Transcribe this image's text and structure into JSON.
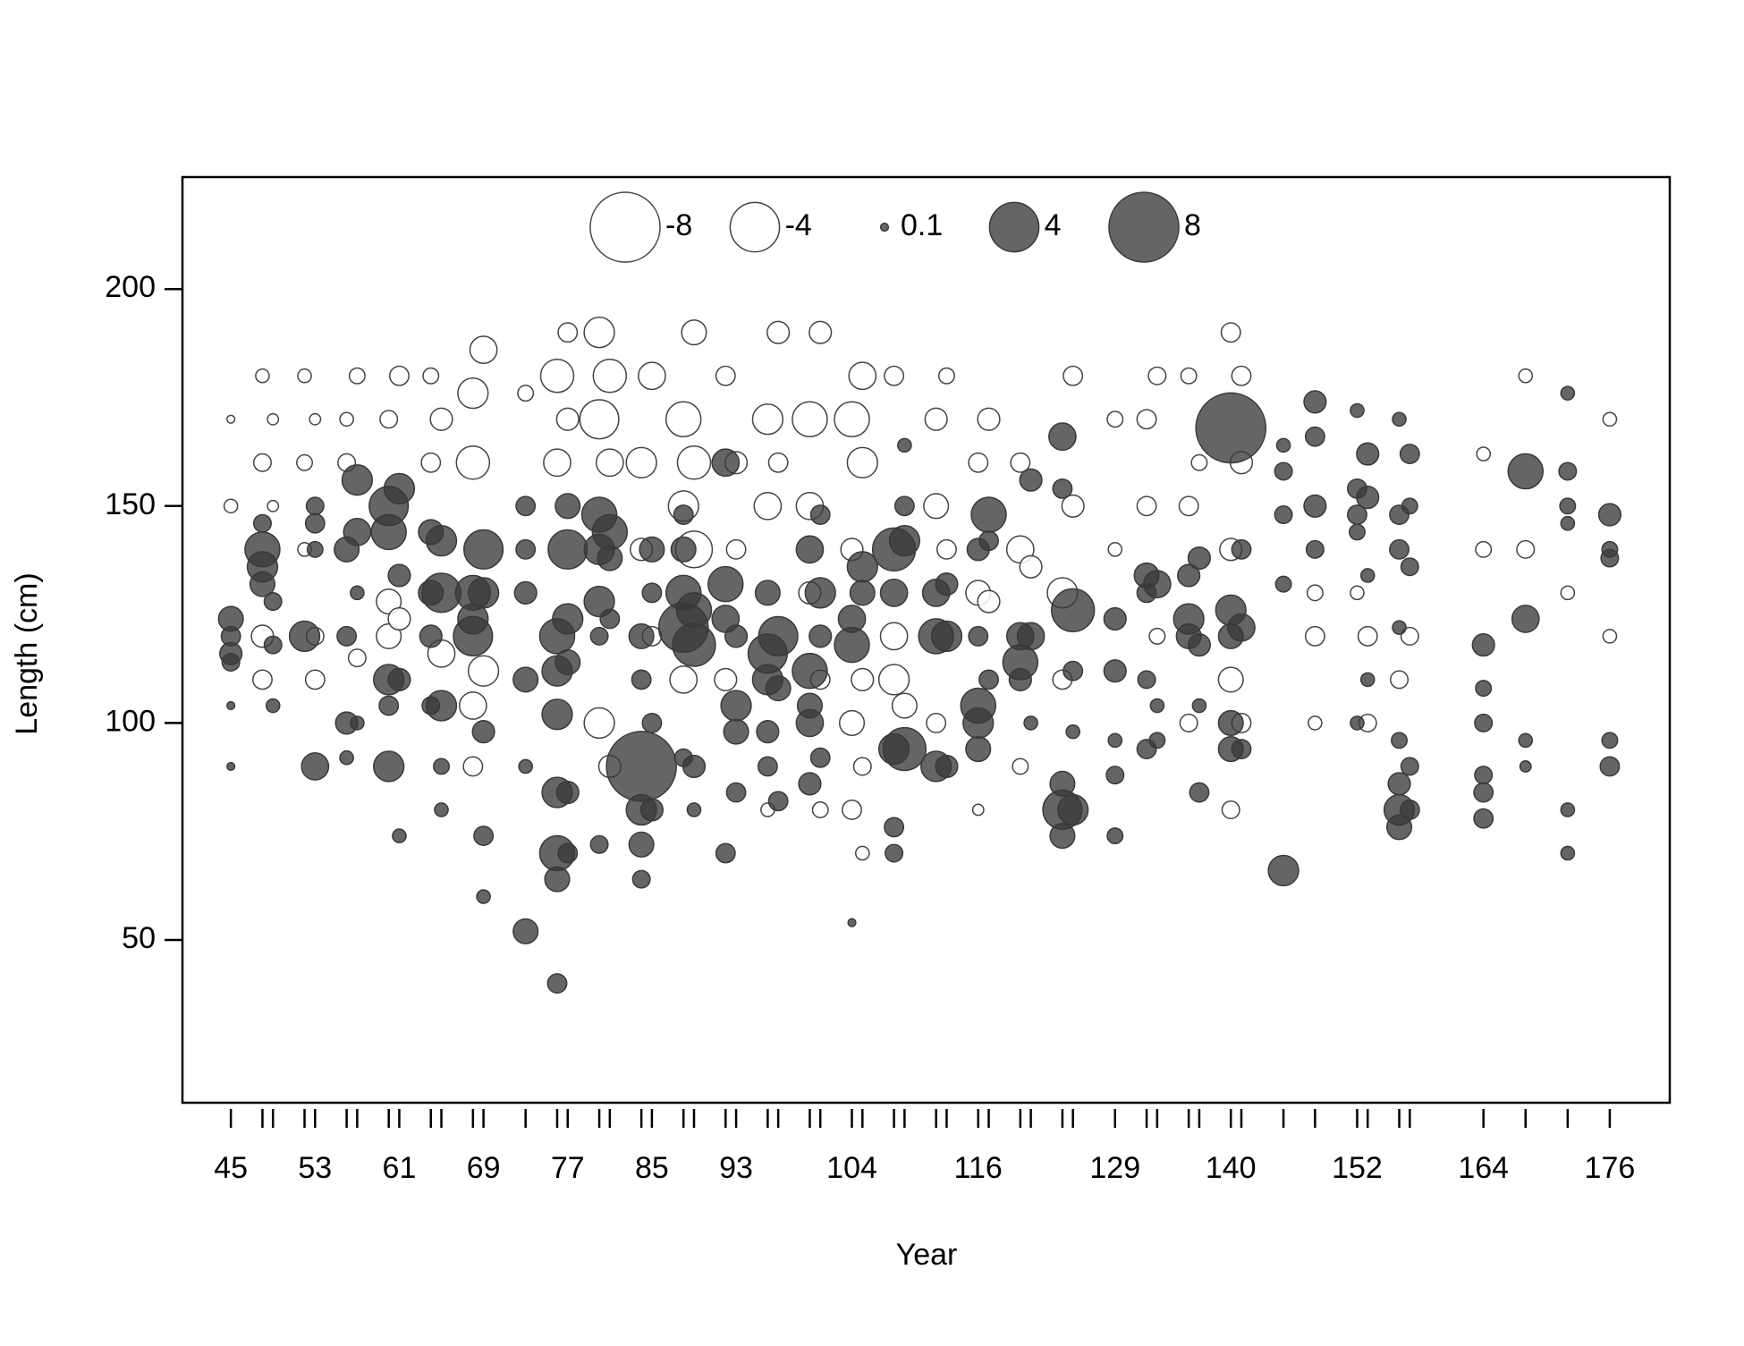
{
  "chart_data": {
    "type": "bubble",
    "x_label": "Year",
    "y_label": "Length (cm)",
    "xlim": [
      40.4,
      181.7
    ],
    "ylim": [
      12.5,
      225.8
    ],
    "xticks": [
      45,
      53,
      61,
      69,
      77,
      85,
      93,
      104,
      116,
      129,
      140,
      152,
      164,
      176
    ],
    "yticks": [
      50,
      100,
      150,
      200
    ],
    "positive_color": "#3a3a3a",
    "negative_color": "#ffffff",
    "negative_stroke": "#444444",
    "legend": {
      "position": "top",
      "values": [
        -8,
        -4,
        0.1,
        4,
        8
      ]
    },
    "columns": [
      {
        "x": 45,
        "y": [
          124,
          120,
          116,
          114,
          104,
          150,
          170,
          90
        ],
        "values": [
          1,
          0.6,
          0.8,
          0.5,
          0.1,
          -0.3,
          -0.1,
          0.1
        ]
      },
      {
        "x": 48,
        "y": [
          140,
          136,
          132,
          146,
          160,
          120,
          110,
          180
        ],
        "values": [
          2,
          1.5,
          1,
          0.5,
          -0.5,
          -0.8,
          -0.6,
          -0.3
        ]
      },
      {
        "x": 49,
        "y": [
          128,
          118,
          104,
          150,
          170
        ],
        "values": [
          0.5,
          0.5,
          0.3,
          -0.2,
          -0.2
        ]
      },
      {
        "x": 52,
        "y": [
          120,
          180,
          160,
          140
        ],
        "values": [
          1.5,
          -0.3,
          -0.4,
          -0.3
        ]
      },
      {
        "x": 53,
        "y": [
          90,
          146,
          150,
          140,
          110,
          120,
          170
        ],
        "values": [
          1.2,
          0.6,
          0.5,
          0.4,
          -0.6,
          -0.5,
          -0.2
        ]
      },
      {
        "x": 56,
        "y": [
          140,
          120,
          100,
          92,
          170,
          160
        ],
        "values": [
          1,
          0.6,
          0.8,
          0.3,
          -0.3,
          -0.5
        ]
      },
      {
        "x": 57,
        "y": [
          156,
          144,
          130,
          100,
          180,
          115
        ],
        "values": [
          1.5,
          1.2,
          0.3,
          0.3,
          -0.4,
          -0.5
        ]
      },
      {
        "x": 60,
        "y": [
          150,
          144,
          110,
          90,
          104,
          170,
          128,
          120
        ],
        "values": [
          2.5,
          2,
          1.5,
          1.5,
          0.6,
          -0.5,
          -1,
          -1
        ]
      },
      {
        "x": 61,
        "y": [
          154,
          134,
          110,
          74,
          180,
          124
        ],
        "values": [
          1.5,
          0.8,
          0.8,
          0.3,
          -0.6,
          -0.8
        ]
      },
      {
        "x": 64,
        "y": [
          144,
          130,
          120,
          104,
          180,
          160
        ],
        "values": [
          1,
          1,
          0.8,
          0.5,
          -0.4,
          -0.6
        ]
      },
      {
        "x": 65,
        "y": [
          142,
          130,
          104,
          90,
          80,
          170,
          116
        ],
        "values": [
          1.5,
          2.5,
          1.5,
          0.4,
          0.3,
          -0.8,
          -1.2
        ]
      },
      {
        "x": 68,
        "y": [
          130,
          120,
          124,
          176,
          160,
          104,
          90
        ],
        "values": [
          2,
          2.5,
          1.5,
          -1.5,
          -1.8,
          -1.2,
          -0.6
        ]
      },
      {
        "x": 69,
        "y": [
          140,
          130,
          98,
          74,
          60,
          186,
          112
        ],
        "values": [
          2.5,
          1.5,
          0.8,
          0.6,
          0.3,
          -1.2,
          -1.5
        ]
      },
      {
        "x": 73,
        "y": [
          150,
          140,
          130,
          110,
          90,
          52,
          176
        ],
        "values": [
          0.6,
          0.6,
          0.8,
          1,
          0.3,
          1,
          -0.4
        ]
      },
      {
        "x": 76,
        "y": [
          120,
          112,
          102,
          84,
          70,
          64,
          40,
          180,
          160
        ],
        "values": [
          2,
          1.5,
          1.5,
          1.5,
          2,
          1,
          0.6,
          -1.8,
          -1.2
        ]
      },
      {
        "x": 77,
        "y": [
          140,
          124,
          114,
          84,
          70,
          190,
          150,
          170
        ],
        "values": [
          2.5,
          1.5,
          1,
          0.8,
          0.6,
          -0.6,
          1,
          -0.8
        ]
      },
      {
        "x": 80,
        "y": [
          148,
          140,
          128,
          120,
          100,
          170,
          190,
          72
        ],
        "values": [
          2,
          1.5,
          1.5,
          0.5,
          -1.5,
          -2.5,
          -1.5,
          0.5
        ]
      },
      {
        "x": 81,
        "y": [
          144,
          138,
          124,
          90,
          180,
          160
        ],
        "values": [
          2,
          1,
          0.6,
          -0.8,
          -1.8,
          -1.2
        ]
      },
      {
        "x": 84,
        "y": [
          90,
          80,
          72,
          64,
          120,
          110,
          160,
          140
        ],
        "values": [
          8,
          1.5,
          1,
          0.5,
          1,
          0.6,
          -1.5,
          -0.8
        ]
      },
      {
        "x": 85,
        "y": [
          140,
          130,
          100,
          80,
          180,
          120
        ],
        "values": [
          1,
          0.6,
          0.6,
          0.8,
          -1.2,
          -0.6
        ]
      },
      {
        "x": 88,
        "y": [
          122,
          130,
          148,
          140,
          170,
          150,
          110,
          92
        ],
        "values": [
          4,
          2,
          0.6,
          1,
          -2,
          -1.5,
          -1.2,
          0.5
        ]
      },
      {
        "x": 89,
        "y": [
          118,
          126,
          90,
          80,
          160,
          140,
          190
        ],
        "values": [
          3,
          2,
          0.8,
          0.3,
          -1.8,
          -2.2,
          -1
        ]
      },
      {
        "x": 92,
        "y": [
          160,
          132,
          124,
          70,
          110,
          180
        ],
        "values": [
          1.2,
          2,
          1.2,
          0.6,
          -0.8,
          -0.6
        ]
      },
      {
        "x": 93,
        "y": [
          104,
          98,
          84,
          120,
          160,
          140
        ],
        "values": [
          1.5,
          1,
          0.6,
          0.8,
          -0.8,
          -0.6
        ]
      },
      {
        "x": 96,
        "y": [
          116,
          110,
          98,
          90,
          130,
          170,
          150,
          80
        ],
        "values": [
          2.5,
          1.5,
          0.8,
          0.6,
          1,
          -1.5,
          -1.2,
          -0.3
        ]
      },
      {
        "x": 97,
        "y": [
          120,
          108,
          82,
          190,
          160
        ],
        "values": [
          2.5,
          1,
          0.6,
          -0.8,
          -0.6
        ]
      },
      {
        "x": 100,
        "y": [
          112,
          104,
          100,
          86,
          140,
          170,
          150,
          130
        ],
        "values": [
          2,
          1,
          1.2,
          0.8,
          1.2,
          -2,
          -1.2,
          -0.8
        ]
      },
      {
        "x": 101,
        "y": [
          130,
          120,
          92,
          148,
          190,
          110,
          80
        ],
        "values": [
          1.5,
          0.8,
          0.6,
          0.6,
          -0.8,
          -0.6,
          -0.4
        ]
      },
      {
        "x": 104,
        "y": [
          118,
          124,
          140,
          170,
          100,
          80,
          54
        ],
        "values": [
          2,
          1.2,
          -0.8,
          -2,
          -1,
          -0.6,
          0.1
        ]
      },
      {
        "x": 105,
        "y": [
          136,
          130,
          110,
          160,
          180,
          90,
          70
        ],
        "values": [
          1.5,
          1,
          -0.8,
          -1.5,
          -1.2,
          -0.5,
          -0.3
        ]
      },
      {
        "x": 108,
        "y": [
          140,
          130,
          94,
          76,
          70,
          120,
          110,
          180
        ],
        "values": [
          3,
          1.2,
          1.5,
          0.6,
          0.5,
          -1.2,
          -1.5,
          -0.6
        ]
      },
      {
        "x": 109,
        "y": [
          142,
          150,
          94,
          164,
          104
        ],
        "values": [
          1.5,
          0.6,
          3,
          0.3,
          -1
        ]
      },
      {
        "x": 112,
        "y": [
          130,
          120,
          90,
          150,
          170,
          100
        ],
        "values": [
          1.2,
          2,
          1.5,
          -1,
          -0.8,
          -0.6
        ]
      },
      {
        "x": 113,
        "y": [
          120,
          132,
          90,
          140,
          180
        ],
        "values": [
          1.5,
          0.8,
          0.8,
          -0.6,
          -0.4
        ]
      },
      {
        "x": 116,
        "y": [
          104,
          100,
          94,
          120,
          140,
          130,
          160,
          80
        ],
        "values": [
          2,
          1.5,
          1,
          0.6,
          0.8,
          -1,
          -0.6,
          -0.2
        ]
      },
      {
        "x": 117,
        "y": [
          148,
          142,
          110,
          170,
          128
        ],
        "values": [
          2,
          0.6,
          0.6,
          -0.8,
          -0.8
        ]
      },
      {
        "x": 120,
        "y": [
          114,
          120,
          110,
          140,
          160,
          90
        ],
        "values": [
          2,
          1.2,
          0.8,
          -1.2,
          -0.6,
          -0.4
        ]
      },
      {
        "x": 121,
        "y": [
          156,
          120,
          100,
          136
        ],
        "values": [
          0.8,
          1.2,
          0.3,
          -0.8
        ]
      },
      {
        "x": 124,
        "y": [
          166,
          154,
          86,
          80,
          74,
          110,
          130
        ],
        "values": [
          1.2,
          0.6,
          1,
          2.5,
          1,
          -0.6,
          -1.5
        ]
      },
      {
        "x": 125,
        "y": [
          126,
          112,
          80,
          98,
          180,
          150
        ],
        "values": [
          3,
          0.6,
          1.5,
          0.3,
          -0.6,
          -0.8
        ]
      },
      {
        "x": 129,
        "y": [
          124,
          112,
          88,
          74,
          96,
          170,
          140
        ],
        "values": [
          0.8,
          0.8,
          0.5,
          0.4,
          0.3,
          -0.4,
          -0.3
        ]
      },
      {
        "x": 132,
        "y": [
          134,
          130,
          110,
          94,
          170,
          150
        ],
        "values": [
          1,
          0.6,
          0.5,
          0.6,
          -0.6,
          -0.6
        ]
      },
      {
        "x": 133,
        "y": [
          132,
          96,
          104,
          180,
          120
        ],
        "values": [
          1.2,
          0.4,
          0.3,
          -0.5,
          -0.4
        ]
      },
      {
        "x": 136,
        "y": [
          134,
          124,
          120,
          100,
          150,
          180
        ],
        "values": [
          0.8,
          1.5,
          1,
          -0.5,
          -0.6,
          -0.4
        ]
      },
      {
        "x": 137,
        "y": [
          138,
          118,
          84,
          104,
          160
        ],
        "values": [
          0.8,
          0.8,
          0.6,
          0.3,
          -0.4
        ]
      },
      {
        "x": 140,
        "y": [
          168,
          126,
          120,
          100,
          94,
          140,
          110,
          80,
          190
        ],
        "values": [
          8,
          1.5,
          1,
          1,
          1,
          -0.8,
          -1,
          -0.5,
          -0.6
        ]
      },
      {
        "x": 141,
        "y": [
          122,
          140,
          94,
          160,
          180,
          100
        ],
        "values": [
          1.2,
          0.6,
          0.6,
          -0.8,
          -0.6,
          -0.6
        ]
      },
      {
        "x": 145,
        "y": [
          158,
          148,
          132,
          66,
          164
        ],
        "values": [
          0.5,
          0.5,
          0.4,
          1.5,
          0.3
        ]
      },
      {
        "x": 148,
        "y": [
          174,
          166,
          150,
          140,
          120,
          130,
          100
        ],
        "values": [
          0.8,
          0.6,
          0.8,
          0.5,
          -0.6,
          -0.4,
          -0.3
        ]
      },
      {
        "x": 152,
        "y": [
          154,
          148,
          144,
          100,
          172,
          130
        ],
        "values": [
          0.6,
          0.6,
          0.4,
          0.3,
          0.3,
          -0.3
        ]
      },
      {
        "x": 153,
        "y": [
          162,
          152,
          134,
          110,
          120,
          100
        ],
        "values": [
          0.8,
          0.8,
          0.3,
          0.3,
          -0.6,
          -0.5
        ]
      },
      {
        "x": 156,
        "y": [
          148,
          140,
          122,
          96,
          86,
          80,
          76,
          110,
          170
        ],
        "values": [
          0.6,
          0.6,
          0.3,
          0.4,
          0.8,
          1.5,
          1,
          -0.5,
          0.3
        ]
      },
      {
        "x": 157,
        "y": [
          162,
          136,
          90,
          80,
          120,
          150
        ],
        "values": [
          0.6,
          0.5,
          0.5,
          0.6,
          -0.5,
          0.4
        ]
      },
      {
        "x": 164,
        "y": [
          118,
          108,
          100,
          88,
          84,
          78,
          162,
          140
        ],
        "values": [
          0.8,
          0.4,
          0.5,
          0.5,
          0.6,
          0.6,
          -0.3,
          -0.4
        ]
      },
      {
        "x": 168,
        "y": [
          158,
          124,
          96,
          90,
          140,
          180
        ],
        "values": [
          2,
          1.2,
          0.3,
          0.2,
          -0.5,
          -0.3
        ]
      },
      {
        "x": 172,
        "y": [
          158,
          150,
          146,
          176,
          80,
          70,
          130
        ],
        "values": [
          0.5,
          0.4,
          0.3,
          0.3,
          0.3,
          0.3,
          -0.3
        ]
      },
      {
        "x": 176,
        "y": [
          148,
          140,
          138,
          96,
          90,
          120,
          170
        ],
        "values": [
          0.8,
          0.4,
          0.5,
          0.4,
          0.6,
          -0.3,
          -0.3
        ]
      }
    ]
  }
}
